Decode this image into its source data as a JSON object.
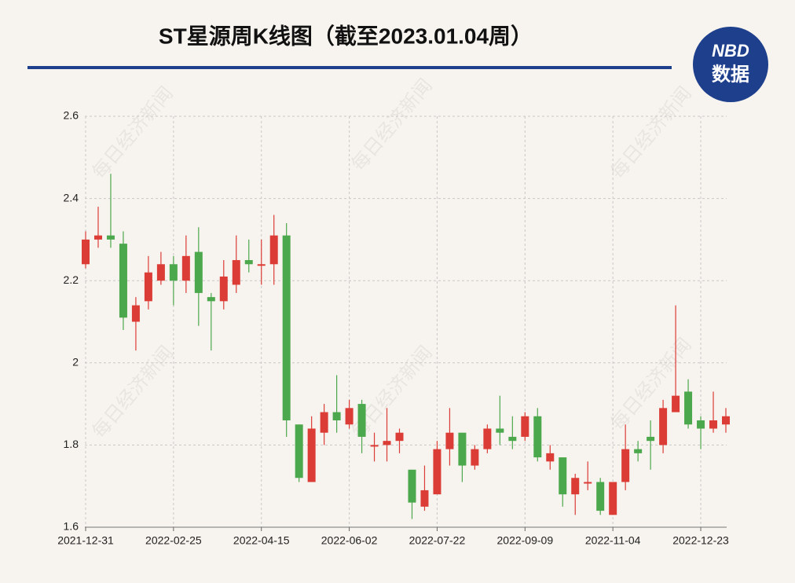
{
  "chart_data": {
    "type": "candlestick",
    "title": "ST星源周K线图（截至2023.01.04周）",
    "logo": [
      "NBD",
      "数据"
    ],
    "watermark": "每日经济新闻",
    "categories": [
      "2021-12-31",
      null,
      null,
      null,
      null,
      null,
      null,
      "2022-02-25",
      null,
      null,
      null,
      null,
      null,
      null,
      "2022-04-15",
      null,
      null,
      null,
      null,
      null,
      null,
      "2022-06-02",
      null,
      null,
      null,
      null,
      null,
      null,
      "2022-07-22",
      null,
      null,
      null,
      null,
      null,
      null,
      "2022-09-09",
      null,
      null,
      null,
      null,
      null,
      null,
      "2022-11-04",
      null,
      null,
      null,
      null,
      null,
      null,
      "2022-12-23",
      null,
      null
    ],
    "open": [
      2.24,
      2.3,
      2.31,
      2.29,
      2.1,
      2.15,
      2.2,
      2.24,
      2.2,
      2.27,
      2.16,
      2.15,
      2.19,
      2.25,
      2.24,
      2.24,
      2.31,
      1.85,
      1.71,
      1.83,
      1.88,
      1.85,
      1.9,
      1.8,
      1.8,
      1.81,
      1.74,
      1.65,
      1.68,
      1.79,
      1.83,
      1.75,
      1.79,
      1.84,
      1.82,
      1.82,
      1.87,
      1.76,
      1.77,
      1.68,
      1.71,
      1.71,
      1.63,
      1.71,
      1.79,
      1.82,
      1.8,
      1.88,
      1.93,
      1.86,
      1.84,
      1.85
    ],
    "high": [
      2.32,
      2.38,
      2.46,
      2.32,
      2.16,
      2.26,
      2.27,
      2.26,
      2.31,
      2.33,
      2.17,
      2.25,
      2.31,
      2.3,
      2.3,
      2.36,
      2.34,
      1.85,
      1.87,
      1.9,
      1.97,
      1.91,
      1.91,
      1.83,
      1.89,
      1.84,
      1.74,
      1.75,
      1.81,
      1.89,
      1.83,
      1.8,
      1.85,
      1.92,
      1.87,
      1.88,
      1.89,
      1.8,
      1.77,
      1.73,
      1.76,
      1.72,
      1.71,
      1.85,
      1.81,
      1.86,
      1.91,
      2.14,
      1.96,
      1.87,
      1.93,
      1.89
    ],
    "low": [
      2.23,
      2.28,
      2.28,
      2.08,
      2.03,
      2.13,
      2.19,
      2.14,
      2.17,
      2.09,
      2.03,
      2.13,
      2.17,
      2.22,
      2.19,
      2.19,
      1.82,
      1.71,
      1.71,
      1.8,
      1.83,
      1.84,
      1.78,
      1.76,
      1.76,
      1.78,
      1.62,
      1.64,
      1.68,
      1.75,
      1.71,
      1.74,
      1.78,
      1.8,
      1.79,
      1.81,
      1.76,
      1.74,
      1.65,
      1.63,
      1.69,
      1.63,
      1.63,
      1.69,
      1.76,
      1.74,
      1.78,
      1.88,
      1.84,
      1.79,
      1.83,
      1.83
    ],
    "close": [
      2.3,
      2.31,
      2.3,
      2.11,
      2.14,
      2.22,
      2.24,
      2.2,
      2.26,
      2.17,
      2.15,
      2.21,
      2.25,
      2.24,
      2.24,
      2.31,
      1.86,
      1.72,
      1.84,
      1.88,
      1.86,
      1.89,
      1.82,
      1.8,
      1.81,
      1.83,
      1.66,
      1.69,
      1.79,
      1.83,
      1.75,
      1.79,
      1.84,
      1.83,
      1.81,
      1.87,
      1.77,
      1.78,
      1.68,
      1.72,
      1.71,
      1.64,
      1.71,
      1.79,
      1.78,
      1.81,
      1.89,
      1.92,
      1.85,
      1.84,
      1.86,
      1.87
    ],
    "up_color": "#dc3c36",
    "down_color": "#4ca84c",
    "ylim": [
      1.6,
      2.6
    ],
    "yticks": [
      1.6,
      1.8,
      2,
      2.2,
      2.4,
      2.6
    ],
    "grid": true
  }
}
